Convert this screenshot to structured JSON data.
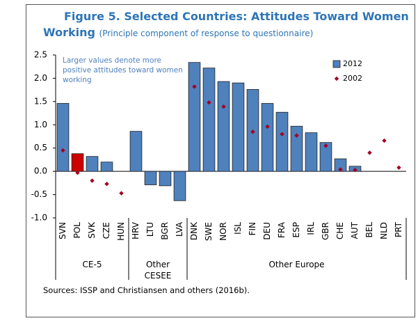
{
  "chart_data": {
    "type": "bar",
    "title": "Figure 5. Selected Countries: Attitudes Toward Women Working",
    "subtitle": "(Principle component of response to questionnaire)",
    "annotation": "Larger values denote more positive attitudes toward women working",
    "source": "Sources: ISSP and Christiansen and others (2016b).",
    "categories": [
      "SVN",
      "POL",
      "SVK",
      "CZE",
      "HUN",
      "HRV",
      "LTU",
      "BGR",
      "LVA",
      "DNK",
      "SWE",
      "NOR",
      "ISL",
      "FIN",
      "DEU",
      "FRA",
      "ESP",
      "IRL",
      "GBR",
      "CHE",
      "AUT",
      "BEL",
      "NLD",
      "PRT"
    ],
    "groups": [
      {
        "label": "CE-5",
        "count": 5
      },
      {
        "label": "Other CESEE",
        "count": 4
      },
      {
        "label": "Other Europe",
        "count": 15
      }
    ],
    "series": [
      {
        "name": "2012",
        "color": "#4f81bd",
        "mark": "bar",
        "colors": [
          "#4f81bd",
          "#cc0000",
          "#4f81bd",
          "#4f81bd",
          "#4f81bd",
          "#4f81bd",
          "#4f81bd",
          "#4f81bd",
          "#4f81bd",
          "#4f81bd",
          "#4f81bd",
          "#4f81bd",
          "#4f81bd",
          "#4f81bd",
          "#4f81bd",
          "#4f81bd",
          "#4f81bd",
          "#4f81bd",
          "#4f81bd",
          "#4f81bd",
          "#4f81bd",
          "#4f81bd",
          "#4f81bd",
          "#4f81bd"
        ],
        "values": [
          1.46,
          0.38,
          0.32,
          0.2,
          null,
          0.86,
          -0.29,
          -0.31,
          -0.63,
          2.34,
          2.22,
          1.93,
          1.9,
          1.76,
          1.46,
          1.27,
          0.97,
          0.83,
          0.62,
          0.27,
          0.11,
          null,
          null,
          null
        ]
      },
      {
        "name": "2002",
        "color": "#a50021",
        "mark": "diamond",
        "values": [
          0.45,
          -0.03,
          -0.2,
          -0.27,
          -0.47,
          null,
          null,
          null,
          null,
          1.82,
          1.48,
          1.39,
          null,
          0.85,
          0.96,
          0.8,
          0.77,
          null,
          0.55,
          0.04,
          0.03,
          0.4,
          0.66,
          0.08
        ]
      }
    ],
    "ylim": [
      -1.0,
      2.5
    ],
    "yticks": [
      {
        "value": 2.5,
        "label": "2.5"
      },
      {
        "value": 2,
        "label": "2.0"
      },
      {
        "value": 1.5,
        "label": "1.5"
      },
      {
        "value": 1,
        "label": "1.0"
      },
      {
        "value": 0.5,
        "label": "0.5"
      },
      {
        "value": 0,
        "label": "0.0"
      },
      {
        "value": -0.5,
        "label": "-0.5"
      },
      {
        "value": -1,
        "label": "-1.0"
      }
    ],
    "grid": false,
    "legend": "top-right"
  }
}
